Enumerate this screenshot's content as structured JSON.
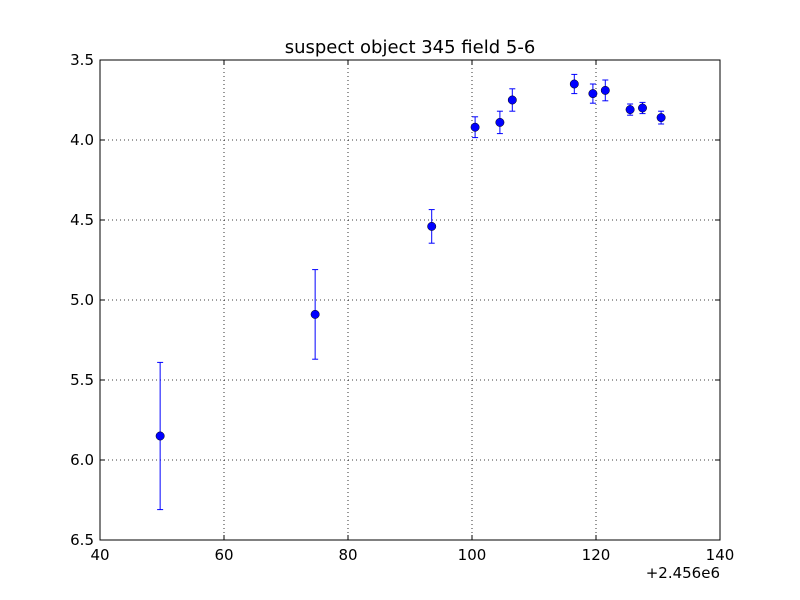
{
  "chart_data": {
    "type": "scatter",
    "title": "suspect object 345 field 5-6",
    "xlabel": "",
    "ylabel": "",
    "x_offset_label": "+2.456e6",
    "xlim": [
      40,
      140
    ],
    "ylim": [
      6.5,
      3.5
    ],
    "y_inverted": true,
    "grid": true,
    "x_ticks": [
      40,
      60,
      80,
      100,
      120,
      140
    ],
    "x_tick_labels": [
      "40",
      "60",
      "80",
      "100",
      "120",
      "140"
    ],
    "y_ticks": [
      3.5,
      4.0,
      4.5,
      5.0,
      5.5,
      6.0,
      6.5
    ],
    "y_tick_labels": [
      "3.5",
      "4.0",
      "4.5",
      "5.0",
      "5.5",
      "6.0",
      "6.5"
    ],
    "marker_color": "#0000ff",
    "series": [
      {
        "points": [
          {
            "x": 49.7,
            "y": 5.85,
            "err": 0.46
          },
          {
            "x": 74.7,
            "y": 5.09,
            "err": 0.28
          },
          {
            "x": 93.5,
            "y": 4.54,
            "err": 0.105
          },
          {
            "x": 100.5,
            "y": 3.92,
            "err": 0.065
          },
          {
            "x": 104.5,
            "y": 3.89,
            "err": 0.07
          },
          {
            "x": 106.5,
            "y": 3.75,
            "err": 0.07
          },
          {
            "x": 116.5,
            "y": 3.65,
            "err": 0.06
          },
          {
            "x": 119.5,
            "y": 3.71,
            "err": 0.06
          },
          {
            "x": 121.5,
            "y": 3.69,
            "err": 0.065
          },
          {
            "x": 125.5,
            "y": 3.81,
            "err": 0.035
          },
          {
            "x": 127.5,
            "y": 3.8,
            "err": 0.035
          },
          {
            "x": 130.5,
            "y": 3.86,
            "err": 0.04
          }
        ]
      }
    ]
  }
}
